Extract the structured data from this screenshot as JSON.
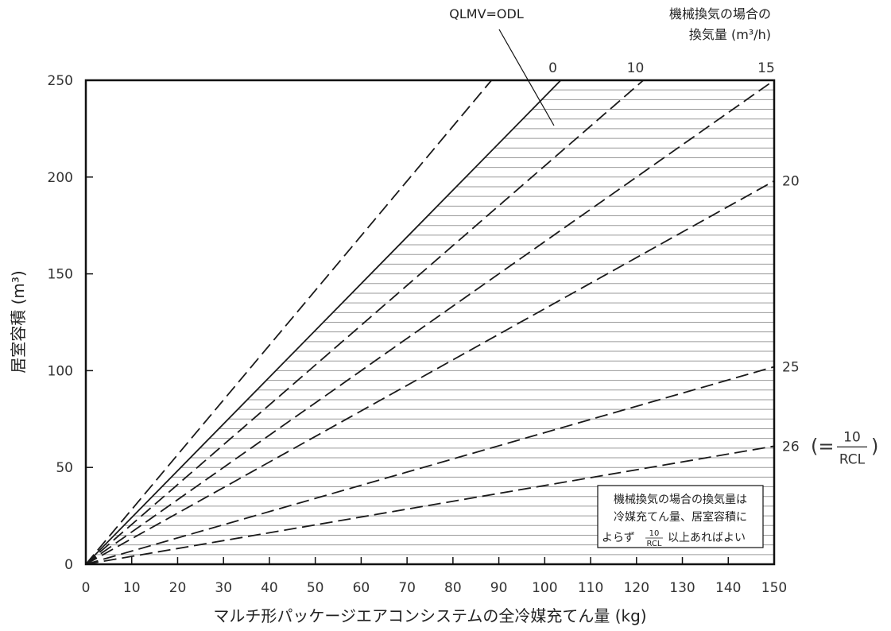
{
  "chart_data": {
    "type": "line",
    "xlabel": "マルチ形パッケージエアコンシステムの全冷媒充てん量 (kg)",
    "ylabel": "居室容積 (m³)",
    "xlim": [
      0,
      150
    ],
    "ylim": [
      0,
      250
    ],
    "x_ticks": [
      "0",
      "10",
      "20",
      "30",
      "40",
      "50",
      "60",
      "70",
      "80",
      "90",
      "100",
      "110",
      "120",
      "130",
      "140",
      "150"
    ],
    "y_ticks": [
      "0",
      "50",
      "100",
      "150",
      "200",
      "250"
    ],
    "secondary_axis_title": [
      "機械換気の場合の",
      "換気量 (m³/h)"
    ],
    "series": [
      {
        "name": "QLMV=ODL",
        "style": "dashed",
        "x": [
          0,
          88.4
        ],
        "y": [
          0,
          250
        ]
      },
      {
        "name": "0",
        "style": "solid",
        "x": [
          0,
          103.5
        ],
        "y": [
          0,
          250
        ]
      },
      {
        "name": "10",
        "style": "dashed",
        "x": [
          0,
          121.5
        ],
        "y": [
          0,
          250
        ]
      },
      {
        "name": "15",
        "style": "dashed",
        "x": [
          0,
          150
        ],
        "y": [
          0,
          250
        ]
      },
      {
        "name": "20",
        "style": "dashed",
        "x": [
          0,
          150
        ],
        "y": [
          0,
          198
        ]
      },
      {
        "name": "25",
        "style": "dashed",
        "x": [
          0,
          150
        ],
        "y": [
          0,
          102
        ]
      },
      {
        "name": "26",
        "style": "dashed",
        "x": [
          0,
          150
        ],
        "y": [
          0,
          61
        ]
      }
    ],
    "series_label_suffix": "(=",
    "series_label_suffix_num": "10",
    "series_label_suffix_den": "RCL",
    "series_label_suffix_close": ")",
    "shaded_region": "below solid line 0 (horizontal hatching)",
    "shading_color": "#9a9a9a",
    "line_color": "#1a1a1a",
    "annotation_box": {
      "lines": [
        "機械換気の場合の換気量は",
        "冷媒充てん量、居室容積に"
      ],
      "last_line_prefix": "よらず",
      "fraction_num": "10",
      "fraction_den": "RCL",
      "last_line_suffix": "以上あればよい"
    },
    "legend": "none",
    "grid": false
  }
}
